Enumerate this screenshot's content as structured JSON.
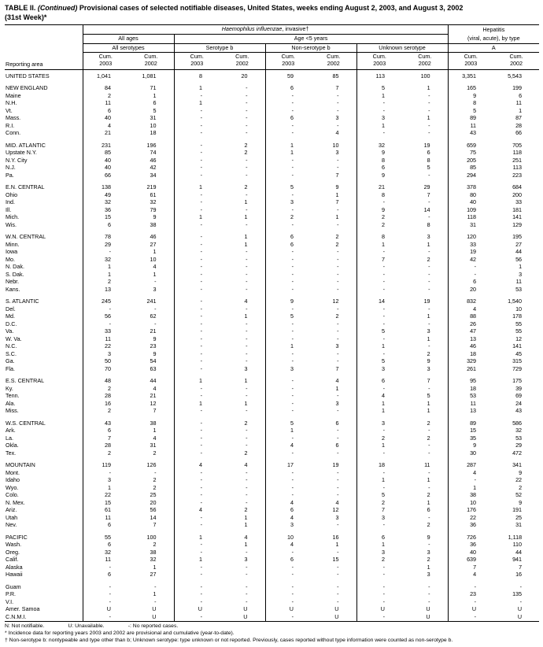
{
  "title": {
    "prefix": "TABLE II. ",
    "continued": "(Continued)",
    "rest": " Provisional cases of selected notifiable diseases, United States, weeks ending August 2, 2003, and August 3, 2002",
    "line2": "(31st Week)*"
  },
  "header": {
    "reporting_area": "Reporting area",
    "hi_italic": "Haemophilus influenzae",
    "hi_rest": ", invasive†",
    "hepatitis_line1": "Hepatitis",
    "hepatitis_line2": "(viral, acute), by type",
    "all_ages": "All ages",
    "age_under_5": "Age <5 years",
    "all_serotypes": "All serotypes",
    "serotype_b": "Serotype b",
    "non_serotype_b": "Non-serotype b",
    "unknown_serotype": "Unknown serotype",
    "hep_a": "A",
    "cum_2003": "Cum.\n2003",
    "cum_2002": "Cum.\n2002"
  },
  "rows": [
    {
      "area": "UNITED STATES",
      "values": [
        "1,041",
        "1,081",
        "8",
        "20",
        "59",
        "85",
        "113",
        "100",
        "3,351",
        "5,543"
      ]
    },
    {
      "area": "NEW ENGLAND",
      "gap": true,
      "values": [
        "84",
        "71",
        "1",
        "-",
        "6",
        "7",
        "5",
        "1",
        "165",
        "199"
      ]
    },
    {
      "area": "Maine",
      "values": [
        "2",
        "1",
        "-",
        "-",
        "-",
        "-",
        "1",
        "-",
        "9",
        "6"
      ]
    },
    {
      "area": "N.H.",
      "values": [
        "11",
        "6",
        "1",
        "-",
        "-",
        "-",
        "-",
        "-",
        "8",
        "11"
      ]
    },
    {
      "area": "Vt.",
      "values": [
        "6",
        "5",
        "-",
        "-",
        "-",
        "-",
        "-",
        "-",
        "5",
        "1"
      ]
    },
    {
      "area": "Mass.",
      "values": [
        "40",
        "31",
        "-",
        "-",
        "6",
        "3",
        "3",
        "1",
        "89",
        "87"
      ]
    },
    {
      "area": "R.I.",
      "values": [
        "4",
        "10",
        "-",
        "-",
        "-",
        "-",
        "1",
        "-",
        "11",
        "28"
      ]
    },
    {
      "area": "Conn.",
      "values": [
        "21",
        "18",
        "-",
        "-",
        "-",
        "4",
        "-",
        "-",
        "43",
        "66"
      ]
    },
    {
      "area": "MID. ATLANTIC",
      "gap": true,
      "values": [
        "231",
        "196",
        "-",
        "2",
        "1",
        "10",
        "32",
        "19",
        "659",
        "705"
      ]
    },
    {
      "area": "Upstate N.Y.",
      "values": [
        "85",
        "74",
        "-",
        "2",
        "1",
        "3",
        "9",
        "6",
        "75",
        "118"
      ]
    },
    {
      "area": "N.Y. City",
      "values": [
        "40",
        "46",
        "-",
        "-",
        "-",
        "-",
        "8",
        "8",
        "205",
        "251"
      ]
    },
    {
      "area": "N.J.",
      "values": [
        "40",
        "42",
        "-",
        "-",
        "-",
        "-",
        "6",
        "5",
        "85",
        "113"
      ]
    },
    {
      "area": "Pa.",
      "values": [
        "66",
        "34",
        "-",
        "-",
        "-",
        "7",
        "9",
        "-",
        "294",
        "223"
      ]
    },
    {
      "area": "E.N. CENTRAL",
      "gap": true,
      "values": [
        "138",
        "219",
        "1",
        "2",
        "5",
        "9",
        "21",
        "29",
        "378",
        "684"
      ]
    },
    {
      "area": "Ohio",
      "values": [
        "49",
        "61",
        "-",
        "-",
        "-",
        "1",
        "8",
        "7",
        "80",
        "200"
      ]
    },
    {
      "area": "Ind.",
      "values": [
        "32",
        "32",
        "-",
        "1",
        "3",
        "7",
        "-",
        "-",
        "40",
        "33"
      ]
    },
    {
      "area": "Ill.",
      "values": [
        "36",
        "79",
        "-",
        "-",
        "-",
        "-",
        "9",
        "14",
        "109",
        "181"
      ]
    },
    {
      "area": "Mich.",
      "values": [
        "15",
        "9",
        "1",
        "1",
        "2",
        "1",
        "2",
        "-",
        "118",
        "141"
      ]
    },
    {
      "area": "Wis.",
      "values": [
        "6",
        "38",
        "-",
        "-",
        "-",
        "-",
        "2",
        "8",
        "31",
        "129"
      ]
    },
    {
      "area": "W.N. CENTRAL",
      "gap": true,
      "values": [
        "78",
        "46",
        "-",
        "1",
        "6",
        "2",
        "8",
        "3",
        "120",
        "195"
      ]
    },
    {
      "area": "Minn.",
      "values": [
        "29",
        "27",
        "-",
        "1",
        "6",
        "2",
        "1",
        "1",
        "33",
        "27"
      ]
    },
    {
      "area": "Iowa",
      "values": [
        "-",
        "1",
        "-",
        "-",
        "-",
        "-",
        "-",
        "-",
        "19",
        "44"
      ]
    },
    {
      "area": "Mo.",
      "values": [
        "32",
        "10",
        "-",
        "-",
        "-",
        "-",
        "7",
        "2",
        "42",
        "56"
      ]
    },
    {
      "area": "N. Dak.",
      "values": [
        "1",
        "4",
        "-",
        "-",
        "-",
        "-",
        "-",
        "-",
        "-",
        "1"
      ]
    },
    {
      "area": "S. Dak.",
      "values": [
        "1",
        "1",
        "-",
        "-",
        "-",
        "-",
        "-",
        "-",
        "-",
        "3"
      ]
    },
    {
      "area": "Nebr.",
      "values": [
        "2",
        "-",
        "-",
        "-",
        "-",
        "-",
        "-",
        "-",
        "6",
        "11"
      ]
    },
    {
      "area": "Kans.",
      "values": [
        "13",
        "3",
        "-",
        "-",
        "-",
        "-",
        "-",
        "-",
        "20",
        "53"
      ]
    },
    {
      "area": "S. ATLANTIC",
      "gap": true,
      "values": [
        "245",
        "241",
        "-",
        "4",
        "9",
        "12",
        "14",
        "19",
        "832",
        "1,540"
      ]
    },
    {
      "area": "Del.",
      "values": [
        "-",
        "-",
        "-",
        "-",
        "-",
        "-",
        "-",
        "-",
        "4",
        "10"
      ]
    },
    {
      "area": "Md.",
      "values": [
        "56",
        "62",
        "-",
        "1",
        "5",
        "2",
        "-",
        "1",
        "88",
        "178"
      ]
    },
    {
      "area": "D.C.",
      "values": [
        "-",
        "-",
        "-",
        "-",
        "-",
        "-",
        "-",
        "-",
        "26",
        "55"
      ]
    },
    {
      "area": "Va.",
      "values": [
        "33",
        "21",
        "-",
        "-",
        "-",
        "-",
        "5",
        "3",
        "47",
        "55"
      ]
    },
    {
      "area": "W. Va.",
      "values": [
        "11",
        "9",
        "-",
        "-",
        "-",
        "-",
        "-",
        "1",
        "13",
        "12"
      ]
    },
    {
      "area": "N.C.",
      "values": [
        "22",
        "23",
        "-",
        "-",
        "1",
        "3",
        "1",
        "-",
        "46",
        "141"
      ]
    },
    {
      "area": "S.C.",
      "values": [
        "3",
        "9",
        "-",
        "-",
        "-",
        "-",
        "-",
        "2",
        "18",
        "45"
      ]
    },
    {
      "area": "Ga.",
      "values": [
        "50",
        "54",
        "-",
        "-",
        "-",
        "-",
        "5",
        "9",
        "329",
        "315"
      ]
    },
    {
      "area": "Fla.",
      "values": [
        "70",
        "63",
        "-",
        "3",
        "3",
        "7",
        "3",
        "3",
        "261",
        "729"
      ]
    },
    {
      "area": "E.S. CENTRAL",
      "gap": true,
      "values": [
        "48",
        "44",
        "1",
        "1",
        "-",
        "4",
        "6",
        "7",
        "95",
        "175"
      ]
    },
    {
      "area": "Ky.",
      "values": [
        "2",
        "4",
        "-",
        "-",
        "-",
        "1",
        "-",
        "-",
        "18",
        "39"
      ]
    },
    {
      "area": "Tenn.",
      "values": [
        "28",
        "21",
        "-",
        "-",
        "-",
        "-",
        "4",
        "5",
        "53",
        "69"
      ]
    },
    {
      "area": "Ala.",
      "values": [
        "16",
        "12",
        "1",
        "1",
        "-",
        "3",
        "1",
        "1",
        "11",
        "24"
      ]
    },
    {
      "area": "Miss.",
      "values": [
        "2",
        "7",
        "-",
        "-",
        "-",
        "-",
        "1",
        "1",
        "13",
        "43"
      ]
    },
    {
      "area": "W.S. CENTRAL",
      "gap": true,
      "values": [
        "43",
        "38",
        "-",
        "2",
        "5",
        "6",
        "3",
        "2",
        "89",
        "586"
      ]
    },
    {
      "area": "Ark.",
      "values": [
        "6",
        "1",
        "-",
        "-",
        "1",
        "-",
        "-",
        "-",
        "15",
        "32"
      ]
    },
    {
      "area": "La.",
      "values": [
        "7",
        "4",
        "-",
        "-",
        "-",
        "-",
        "2",
        "2",
        "35",
        "53"
      ]
    },
    {
      "area": "Okla.",
      "values": [
        "28",
        "31",
        "-",
        "-",
        "4",
        "6",
        "1",
        "-",
        "9",
        "29"
      ]
    },
    {
      "area": "Tex.",
      "values": [
        "2",
        "2",
        "-",
        "2",
        "-",
        "-",
        "-",
        "-",
        "30",
        "472"
      ]
    },
    {
      "area": "MOUNTAIN",
      "gap": true,
      "values": [
        "119",
        "126",
        "4",
        "4",
        "17",
        "19",
        "18",
        "11",
        "287",
        "341"
      ]
    },
    {
      "area": "Mont.",
      "values": [
        "-",
        "-",
        "-",
        "-",
        "-",
        "-",
        "-",
        "-",
        "4",
        "9"
      ]
    },
    {
      "area": "Idaho",
      "values": [
        "3",
        "2",
        "-",
        "-",
        "-",
        "-",
        "1",
        "1",
        "-",
        "22"
      ]
    },
    {
      "area": "Wyo.",
      "values": [
        "1",
        "2",
        "-",
        "-",
        "-",
        "-",
        "-",
        "-",
        "1",
        "2"
      ]
    },
    {
      "area": "Colo.",
      "values": [
        "22",
        "25",
        "-",
        "-",
        "-",
        "-",
        "5",
        "2",
        "38",
        "52"
      ]
    },
    {
      "area": "N. Mex.",
      "values": [
        "15",
        "20",
        "-",
        "-",
        "4",
        "4",
        "2",
        "1",
        "10",
        "9"
      ]
    },
    {
      "area": "Ariz.",
      "values": [
        "61",
        "56",
        "4",
        "2",
        "6",
        "12",
        "7",
        "6",
        "176",
        "191"
      ]
    },
    {
      "area": "Utah",
      "values": [
        "11",
        "14",
        "-",
        "1",
        "4",
        "3",
        "3",
        "-",
        "22",
        "25"
      ]
    },
    {
      "area": "Nev.",
      "values": [
        "6",
        "7",
        "-",
        "1",
        "3",
        "-",
        "-",
        "2",
        "36",
        "31"
      ]
    },
    {
      "area": "PACIFIC",
      "gap": true,
      "values": [
        "55",
        "100",
        "1",
        "4",
        "10",
        "16",
        "6",
        "9",
        "726",
        "1,118"
      ]
    },
    {
      "area": "Wash.",
      "values": [
        "6",
        "2",
        "-",
        "1",
        "4",
        "1",
        "1",
        "-",
        "36",
        "110"
      ]
    },
    {
      "area": "Oreg.",
      "values": [
        "32",
        "38",
        "-",
        "-",
        "-",
        "-",
        "3",
        "3",
        "40",
        "44"
      ]
    },
    {
      "area": "Calif.",
      "values": [
        "11",
        "32",
        "1",
        "3",
        "6",
        "15",
        "2",
        "2",
        "639",
        "941"
      ]
    },
    {
      "area": "Alaska",
      "values": [
        "-",
        "1",
        "-",
        "-",
        "-",
        "-",
        "-",
        "1",
        "7",
        "7"
      ]
    },
    {
      "area": "Hawaii",
      "values": [
        "6",
        "27",
        "-",
        "-",
        "-",
        "-",
        "-",
        "3",
        "4",
        "16"
      ]
    },
    {
      "area": "Guam",
      "gap": true,
      "values": [
        "-",
        "-",
        "-",
        "-",
        "-",
        "-",
        "-",
        "-",
        "-",
        "-"
      ]
    },
    {
      "area": "P.R.",
      "values": [
        "-",
        "1",
        "-",
        "-",
        "-",
        "-",
        "-",
        "-",
        "23",
        "135"
      ]
    },
    {
      "area": "V.I.",
      "values": [
        "-",
        "-",
        "-",
        "-",
        "-",
        "-",
        "-",
        "-",
        "-",
        "-"
      ]
    },
    {
      "area": "Amer. Samoa",
      "values": [
        "U",
        "U",
        "U",
        "U",
        "U",
        "U",
        "U",
        "U",
        "U",
        "U"
      ]
    },
    {
      "area": "C.N.M.I.",
      "values": [
        "-",
        "U",
        "-",
        "U",
        "-",
        "U",
        "-",
        "U",
        "-",
        "U"
      ]
    }
  ],
  "footnotes": [
    "N: Not notifiable.                U: Unavailable.                -: No reported cases.",
    "* Incidence data for reporting years 2003 and 2002 are provisional and cumulative (year-to-date).",
    "† Non-serotype b: nontypeable and type other than b; Unknown serotype: type unknown or not reported. Previously, cases reported without type information were counted as non-serotype b."
  ]
}
